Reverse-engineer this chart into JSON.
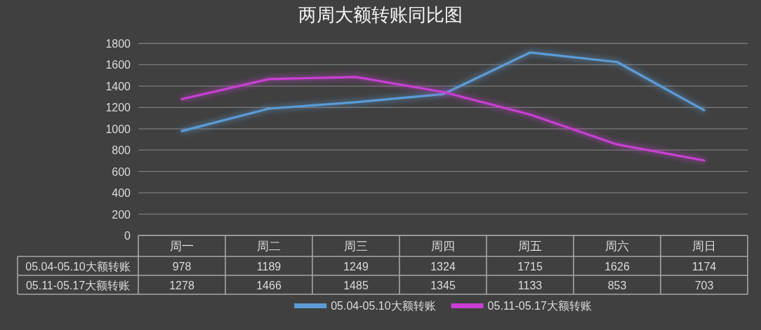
{
  "chart_data": {
    "type": "line",
    "title": "两周大额转账同比图",
    "categories": [
      "周一",
      "周二",
      "周三",
      "周四",
      "周五",
      "周六",
      "周日"
    ],
    "series": [
      {
        "name": "05.04-05.10大额转账",
        "color": "#5b9bd5",
        "values": [
          978,
          1189,
          1249,
          1324,
          1715,
          1626,
          1174
        ]
      },
      {
        "name": "05.11-05.17大额转账",
        "color": "#c83fd2",
        "values": [
          1278,
          1466,
          1485,
          1345,
          1133,
          853,
          703
        ]
      }
    ],
    "ylim": [
      0,
      1800
    ],
    "yticks": [
      0,
      200,
      400,
      600,
      800,
      1000,
      1200,
      1400,
      1600,
      1800
    ],
    "grid": "y",
    "data_labels": true,
    "legend": "bottom"
  }
}
